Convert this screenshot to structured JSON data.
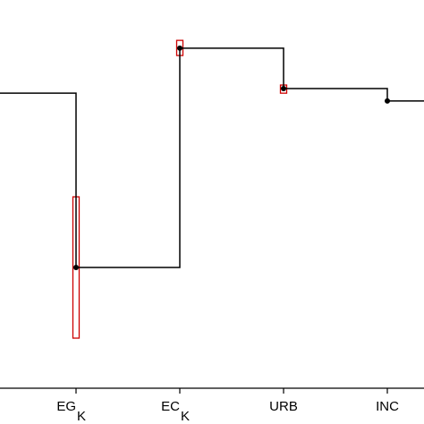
{
  "chart_data": {
    "type": "step",
    "categories": [
      null,
      "EG",
      "EC",
      "URB",
      "INC"
    ],
    "category_subscripts": [
      null,
      "K",
      "K",
      null,
      null
    ],
    "values": [
      0.76,
      0.311,
      0.876,
      0.772,
      0.74
    ],
    "interval_low": [
      null,
      0.129,
      0.857,
      0.76,
      null
    ],
    "interval_high": [
      null,
      0.493,
      0.896,
      0.781,
      null
    ],
    "color": "#000000",
    "interval_color": "#cc0000",
    "ylim": [
      0,
      1
    ]
  }
}
